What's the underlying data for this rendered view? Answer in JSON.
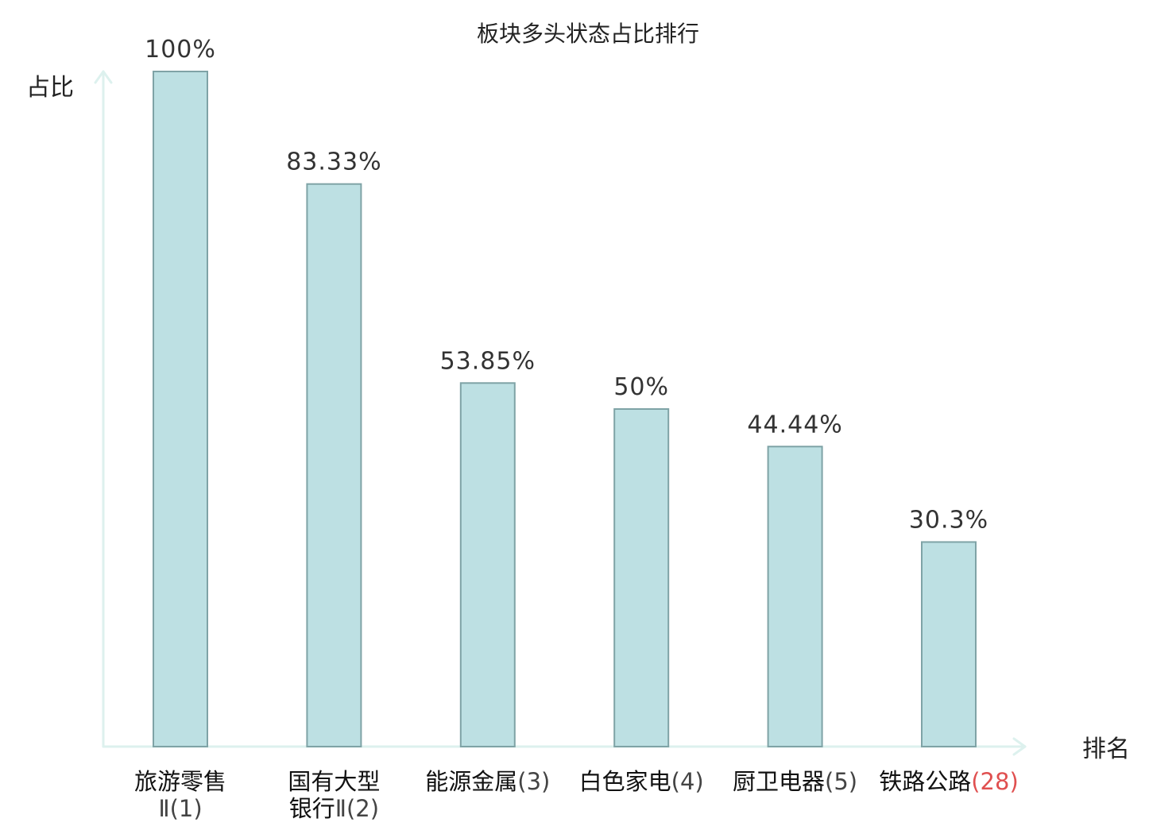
{
  "chart_data": {
    "type": "bar",
    "title": "板块多头状态占比排行",
    "ylabel": "占比",
    "xlabel": "排名",
    "ylim": [
      0,
      100
    ],
    "grid": false,
    "legend": "none",
    "categories": [
      {
        "lines": [
          {
            "name": "旅游零售",
            "suffix": ""
          },
          {
            "name": "",
            "suffix": "Ⅱ(1)"
          }
        ],
        "highlight": false
      },
      {
        "lines": [
          {
            "name": "国有大型",
            "suffix": ""
          },
          {
            "name": "银行",
            "suffix": "Ⅱ(2)"
          }
        ],
        "highlight": false
      },
      {
        "lines": [
          {
            "name": "能源金属",
            "suffix": "(3)"
          }
        ],
        "highlight": false
      },
      {
        "lines": [
          {
            "name": "白色家电",
            "suffix": "(4)"
          }
        ],
        "highlight": false
      },
      {
        "lines": [
          {
            "name": "厨卫电器",
            "suffix": "(5)"
          }
        ],
        "highlight": false
      },
      {
        "lines": [
          {
            "name": "铁路公路",
            "suffix": "(28)"
          }
        ],
        "highlight": true
      }
    ],
    "values": [
      100,
      83.33,
      53.85,
      50,
      44.44,
      30.3
    ],
    "data_labels": [
      "100%",
      "83.33%",
      "53.85%",
      "50%",
      "44.44%",
      "30.3%"
    ],
    "colors": {
      "bar_fill": "#bde0e3",
      "bar_stroke": "#7fa3a6",
      "axis": "#ddf1ee",
      "highlight_text": "#e01010"
    }
  }
}
